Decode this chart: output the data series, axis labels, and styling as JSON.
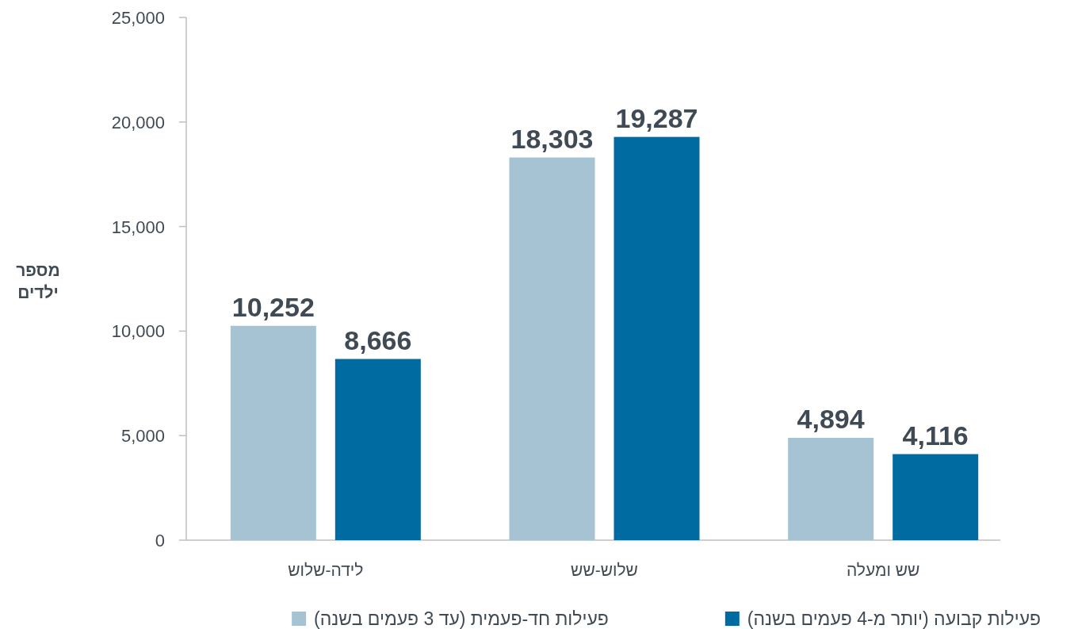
{
  "chart_data": {
    "type": "bar",
    "ylabel": "מספר ילדים",
    "categories": [
      "לידה-שלוש",
      "שלוש-שש",
      "שש ומעלה"
    ],
    "series": [
      {
        "name": "פעילות חד-פעמית (עד 3 פעמים בשנה)",
        "color": "#a5c3d3",
        "values": [
          10252,
          18303,
          4894
        ],
        "value_labels": [
          "10,252",
          "18,303",
          "4,894"
        ]
      },
      {
        "name": "פעילות קבועה (יותר מ-4 פעמים בשנה)",
        "color": "#006ba1",
        "values": [
          8666,
          19287,
          4116
        ],
        "value_labels": [
          "8,666",
          "19,287",
          "4,116"
        ]
      }
    ],
    "ylim": [
      0,
      25000
    ],
    "yticks": [
      {
        "value": 0,
        "label": "0"
      },
      {
        "value": 5000,
        "label": "5,000"
      },
      {
        "value": 10000,
        "label": "10,000"
      },
      {
        "value": 15000,
        "label": "15,000"
      },
      {
        "value": 20000,
        "label": "20,000"
      },
      {
        "value": 25000,
        "label": "25,000"
      }
    ],
    "grid": false,
    "legend": "bottom"
  }
}
